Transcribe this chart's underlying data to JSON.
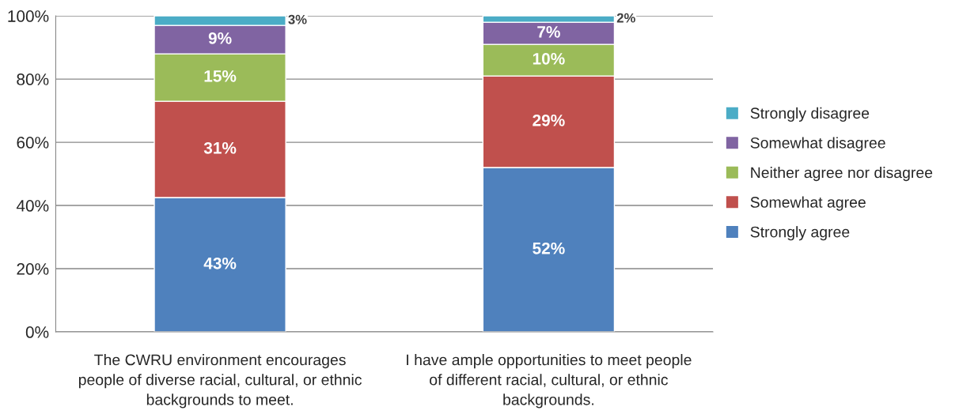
{
  "chart_data": {
    "type": "bar",
    "stacked": true,
    "categories": [
      "The CWRU environment encourages people of diverse racial, cultural, or ethnic backgrounds to meet.",
      "I have ample opportunities to meet people of different racial, cultural, or ethnic backgrounds."
    ],
    "series": [
      {
        "name": "Strongly agree",
        "color": "#4f81bd",
        "values": [
          42.5,
          52
        ],
        "value_labels": [
          "43%",
          "52%"
        ]
      },
      {
        "name": "Somewhat agree",
        "color": "#c0504d",
        "values": [
          30.5,
          29
        ],
        "value_labels": [
          "31%",
          "29%"
        ]
      },
      {
        "name": "Neither agree nor disagree",
        "color": "#9bbb59",
        "values": [
          15,
          10
        ],
        "value_labels": [
          "15%",
          "10%"
        ]
      },
      {
        "name": "Somewhat disagree",
        "color": "#8064a2",
        "values": [
          9,
          7
        ],
        "value_labels": [
          "9%",
          "7%"
        ]
      },
      {
        "name": "Strongly disagree",
        "color": "#4bacc6",
        "values": [
          3,
          2
        ],
        "value_labels": [
          "3%",
          "2%"
        ]
      }
    ],
    "ylim": [
      0,
      100
    ],
    "yticks": [
      {
        "value": 0,
        "label": "0%"
      },
      {
        "value": 20,
        "label": "20%"
      },
      {
        "value": 40,
        "label": "40%"
      },
      {
        "value": 60,
        "label": "60%"
      },
      {
        "value": 80,
        "label": "80%"
      },
      {
        "value": 100,
        "label": "100%"
      }
    ],
    "grid": "y",
    "legend": "right"
  }
}
